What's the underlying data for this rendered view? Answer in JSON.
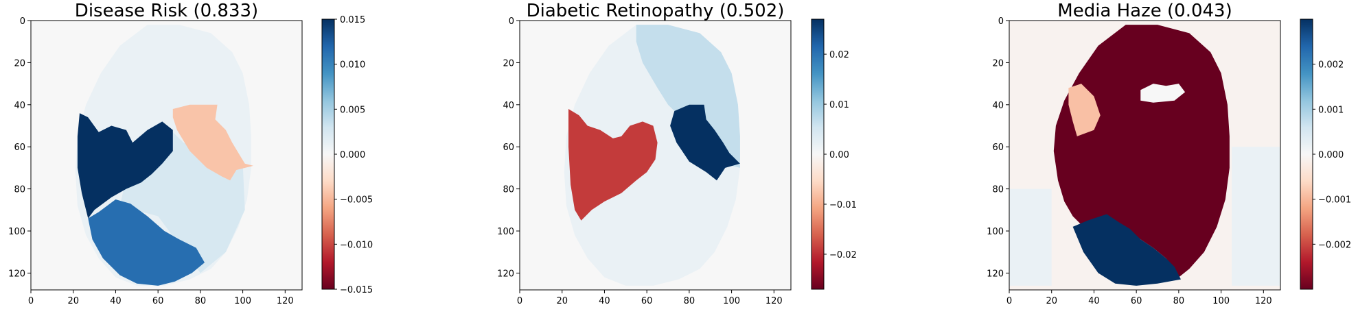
{
  "chart_data": [
    {
      "type": "heatmap",
      "title": "Disease Risk  (0.833)",
      "xlabel": "",
      "ylabel": "",
      "xlim": [
        0,
        128
      ],
      "ylim": [
        128,
        0
      ],
      "x_ticks": [
        0,
        20,
        40,
        60,
        80,
        100,
        120
      ],
      "y_ticks": [
        0,
        20,
        40,
        60,
        80,
        100,
        120
      ],
      "background": 0.0,
      "colormap": "RdBu",
      "colorbar": {
        "vmin": -0.015,
        "vmax": 0.015,
        "ticks": [
          -0.015,
          -0.01,
          -0.005,
          0.0,
          0.005,
          0.01,
          0.015
        ],
        "tick_labels": [
          "−0.015",
          "−0.010",
          "−0.005",
          "0.000",
          "0.005",
          "0.010",
          "0.015"
        ]
      },
      "regions": [
        {
          "value": 0.001,
          "polygon": [
            [
              55,
              2
            ],
            [
              70,
              2
            ],
            [
              85,
              6
            ],
            [
              95,
              15
            ],
            [
              100,
              25
            ],
            [
              103,
              40
            ],
            [
              104,
              55
            ],
            [
              104,
              70
            ],
            [
              102,
              85
            ],
            [
              98,
              98
            ],
            [
              92,
              110
            ],
            [
              85,
              118
            ],
            [
              75,
              123
            ],
            [
              63,
              126
            ],
            [
              50,
              126
            ],
            [
              40,
              122
            ],
            [
              32,
              113
            ],
            [
              26,
              102
            ],
            [
              22,
              88
            ],
            [
              21,
              72
            ],
            [
              22,
              55
            ],
            [
              26,
              40
            ],
            [
              33,
              25
            ],
            [
              42,
              12
            ]
          ]
        },
        {
          "value": 0.0025,
          "polygon": [
            [
              72,
              58
            ],
            [
              100,
              68
            ],
            [
              101,
              90
            ],
            [
              92,
              110
            ],
            [
              80,
              120
            ],
            [
              60,
              93
            ],
            [
              42,
              88
            ],
            [
              48,
              62
            ],
            [
              66,
              52
            ]
          ]
        },
        {
          "value": 0.015,
          "polygon": [
            [
              23,
              44
            ],
            [
              27,
              46
            ],
            [
              32,
              53
            ],
            [
              38,
              50
            ],
            [
              45,
              52
            ],
            [
              48,
              58
            ],
            [
              55,
              52
            ],
            [
              62,
              48
            ],
            [
              67,
              52
            ],
            [
              67,
              62
            ],
            [
              62,
              68
            ],
            [
              57,
              73
            ],
            [
              52,
              77
            ],
            [
              45,
              80
            ],
            [
              38,
              84
            ],
            [
              30,
              90
            ],
            [
              27,
              94
            ],
            [
              24,
              82
            ],
            [
              22,
              70
            ],
            [
              22,
              55
            ]
          ]
        },
        {
          "value": 0.0115,
          "polygon": [
            [
              27,
              94
            ],
            [
              32,
              91
            ],
            [
              40,
              85
            ],
            [
              47,
              87
            ],
            [
              55,
              93
            ],
            [
              63,
              100
            ],
            [
              70,
              104
            ],
            [
              78,
              108
            ],
            [
              82,
              115
            ],
            [
              76,
              120
            ],
            [
              68,
              124
            ],
            [
              60,
              126
            ],
            [
              50,
              125
            ],
            [
              42,
              121
            ],
            [
              34,
              113
            ],
            [
              29,
              104
            ]
          ]
        },
        {
          "value": -0.0043,
          "polygon": [
            [
              67,
              42
            ],
            [
              75,
              40
            ],
            [
              88,
              40
            ],
            [
              87,
              47
            ],
            [
              92,
              52
            ],
            [
              95,
              58
            ],
            [
              98,
              63
            ],
            [
              101,
              68
            ],
            [
              105,
              69
            ],
            [
              97,
              71
            ],
            [
              94,
              76
            ],
            [
              90,
              74
            ],
            [
              83,
              70
            ],
            [
              75,
              62
            ],
            [
              69,
              52
            ],
            [
              67,
              46
            ]
          ]
        }
      ]
    },
    {
      "type": "heatmap",
      "title": "Diabetic Retinopathy  (0.502)",
      "xlabel": "",
      "ylabel": "",
      "xlim": [
        0,
        128
      ],
      "ylim": [
        128,
        0
      ],
      "x_ticks": [
        0,
        20,
        40,
        60,
        80,
        100,
        120
      ],
      "y_ticks": [
        0,
        20,
        40,
        60,
        80,
        100,
        120
      ],
      "background": 0.0,
      "colormap": "RdBu",
      "colorbar": {
        "vmin": -0.027,
        "vmax": 0.027,
        "ticks": [
          -0.02,
          -0.01,
          0.0,
          0.01,
          0.02
        ],
        "tick_labels": [
          "−0.02",
          "−0.01",
          "0.00",
          "0.01",
          "0.02"
        ]
      },
      "regions": [
        {
          "value": 0.0018,
          "polygon": [
            [
              55,
              2
            ],
            [
              70,
              2
            ],
            [
              85,
              6
            ],
            [
              95,
              15
            ],
            [
              100,
              25
            ],
            [
              103,
              40
            ],
            [
              104,
              55
            ],
            [
              104,
              70
            ],
            [
              102,
              85
            ],
            [
              98,
              98
            ],
            [
              92,
              110
            ],
            [
              85,
              118
            ],
            [
              75,
              123
            ],
            [
              63,
              126
            ],
            [
              50,
              126
            ],
            [
              40,
              122
            ],
            [
              32,
              113
            ],
            [
              26,
              102
            ],
            [
              22,
              88
            ],
            [
              21,
              72
            ],
            [
              22,
              55
            ],
            [
              26,
              40
            ],
            [
              33,
              25
            ],
            [
              42,
              12
            ]
          ]
        },
        {
          "value": 0.0065,
          "polygon": [
            [
              55,
              2
            ],
            [
              70,
              2
            ],
            [
              85,
              6
            ],
            [
              95,
              15
            ],
            [
              100,
              25
            ],
            [
              103,
              40
            ],
            [
              104,
              55
            ],
            [
              104,
              70
            ],
            [
              96,
              68
            ],
            [
              88,
              58
            ],
            [
              78,
              48
            ],
            [
              70,
              40
            ],
            [
              65,
              32
            ],
            [
              58,
              20
            ],
            [
              55,
              10
            ]
          ]
        },
        {
          "value": -0.019,
          "polygon": [
            [
              23,
              42
            ],
            [
              28,
              45
            ],
            [
              32,
              50
            ],
            [
              38,
              52
            ],
            [
              44,
              56
            ],
            [
              48,
              55
            ],
            [
              52,
              50
            ],
            [
              58,
              48
            ],
            [
              63,
              50
            ],
            [
              65,
              58
            ],
            [
              64,
              66
            ],
            [
              60,
              72
            ],
            [
              55,
              76
            ],
            [
              48,
              82
            ],
            [
              40,
              86
            ],
            [
              34,
              90
            ],
            [
              29,
              95
            ],
            [
              26,
              90
            ],
            [
              24,
              78
            ],
            [
              23,
              60
            ]
          ]
        },
        {
          "value": 0.027,
          "polygon": [
            [
              73,
              43
            ],
            [
              80,
              40
            ],
            [
              87,
              40
            ],
            [
              88,
              47
            ],
            [
              92,
              52
            ],
            [
              96,
              58
            ],
            [
              99,
              63
            ],
            [
              104,
              68
            ],
            [
              97,
              70
            ],
            [
              93,
              76
            ],
            [
              88,
              72
            ],
            [
              80,
              67
            ],
            [
              74,
              58
            ],
            [
              71,
              50
            ]
          ]
        }
      ]
    },
    {
      "type": "heatmap",
      "title": "Media Haze  (0.043)",
      "xlabel": "",
      "ylabel": "",
      "xlim": [
        0,
        128
      ],
      "ylim": [
        128,
        0
      ],
      "x_ticks": [
        0,
        20,
        40,
        60,
        80,
        100,
        120
      ],
      "y_ticks": [
        0,
        20,
        40,
        60,
        80,
        100,
        120
      ],
      "background": -0.0001,
      "colormap": "RdBu",
      "colorbar": {
        "vmin": -0.003,
        "vmax": 0.003,
        "ticks": [
          -0.002,
          -0.001,
          0.0,
          0.001,
          0.002
        ],
        "tick_labels": [
          "−0.002",
          "−0.001",
          "0.000",
          "0.001",
          "0.002"
        ]
      },
      "regions": [
        {
          "value": 0.0002,
          "polygon": [
            [
              0,
              80
            ],
            [
              20,
              80
            ],
            [
              20,
              126
            ],
            [
              0,
              126
            ]
          ]
        },
        {
          "value": 0.0002,
          "polygon": [
            [
              105,
              60
            ],
            [
              128,
              60
            ],
            [
              128,
              126
            ],
            [
              105,
              126
            ]
          ]
        },
        {
          "value": -0.003,
          "polygon": [
            [
              55,
              2
            ],
            [
              70,
              2
            ],
            [
              85,
              6
            ],
            [
              95,
              15
            ],
            [
              100,
              25
            ],
            [
              103,
              40
            ],
            [
              104,
              55
            ],
            [
              104,
              70
            ],
            [
              102,
              85
            ],
            [
              98,
              98
            ],
            [
              92,
              110
            ],
            [
              85,
              118
            ],
            [
              80,
              122
            ],
            [
              78,
              118
            ],
            [
              74,
              113
            ],
            [
              68,
              108
            ],
            [
              62,
              104
            ],
            [
              57,
              100
            ],
            [
              52,
              97
            ],
            [
              46,
              95
            ],
            [
              40,
              96
            ],
            [
              35,
              98
            ],
            [
              30,
              93
            ],
            [
              26,
              86
            ],
            [
              23,
              76
            ],
            [
              21,
              62
            ],
            [
              22,
              50
            ],
            [
              26,
              38
            ],
            [
              33,
              25
            ],
            [
              42,
              12
            ]
          ]
        },
        {
          "value": 0.0,
          "polygon": [
            [
              62,
              33
            ],
            [
              68,
              30
            ],
            [
              74,
              31
            ],
            [
              80,
              30
            ],
            [
              83,
              34
            ],
            [
              78,
              38
            ],
            [
              68,
              39
            ],
            [
              62,
              38
            ]
          ]
        },
        {
          "value": -0.0009,
          "polygon": [
            [
              28,
              32
            ],
            [
              34,
              30
            ],
            [
              40,
              36
            ],
            [
              43,
              45
            ],
            [
              40,
              52
            ],
            [
              32,
              55
            ],
            [
              30,
              48
            ],
            [
              28,
              40
            ]
          ]
        },
        {
          "value": 0.003,
          "polygon": [
            [
              30,
              98
            ],
            [
              37,
              95
            ],
            [
              40,
              94
            ],
            [
              46,
              92
            ],
            [
              52,
              96
            ],
            [
              57,
              99
            ],
            [
              62,
              104
            ],
            [
              68,
              108
            ],
            [
              74,
              113
            ],
            [
              78,
              117
            ],
            [
              81,
              123
            ],
            [
              70,
              125
            ],
            [
              60,
              126
            ],
            [
              50,
              125
            ],
            [
              42,
              120
            ],
            [
              35,
              110
            ]
          ]
        }
      ]
    }
  ]
}
